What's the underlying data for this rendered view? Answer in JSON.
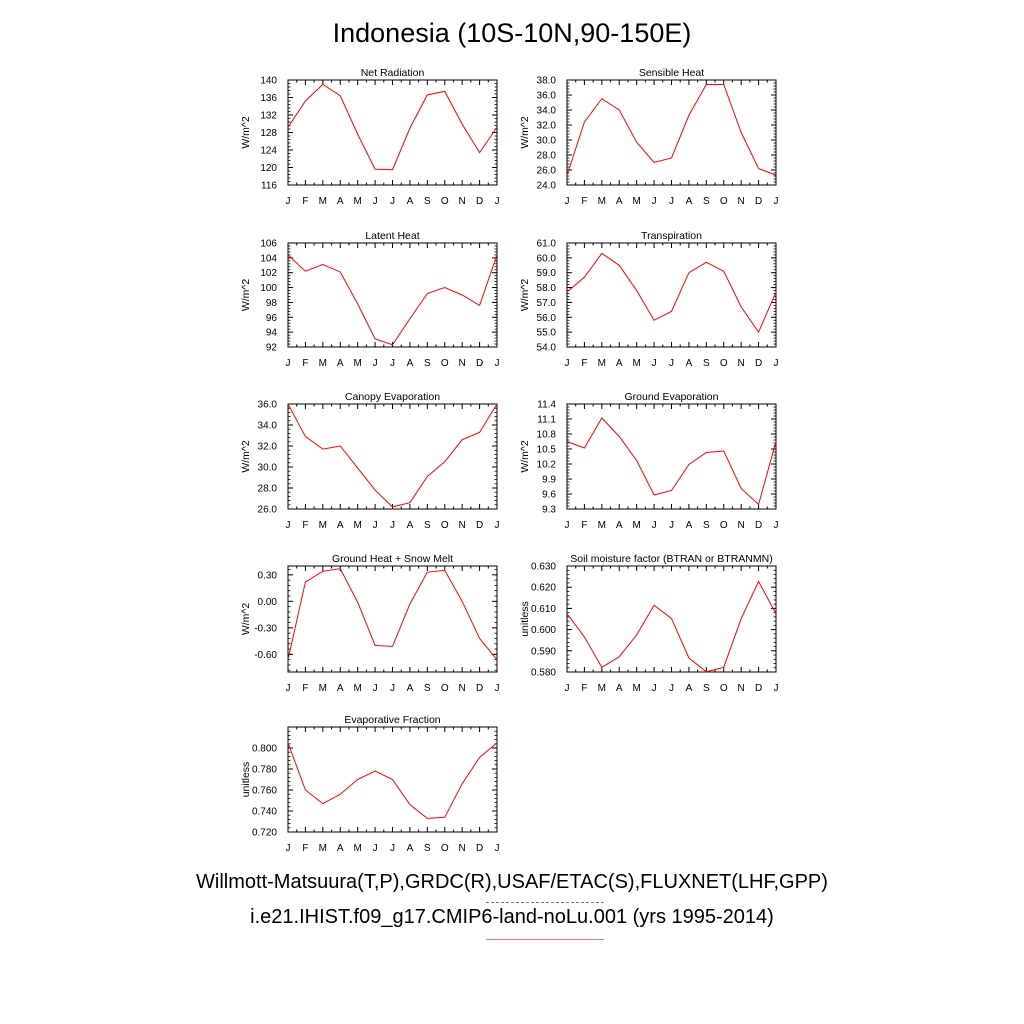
{
  "title": "Indonesia (10S-10N,90-150E)",
  "footer": {
    "line1": "Willmott-Matsuura(T,P),GRDC(R),USAF/ETAC(S),FLUXNET(LHF,GPP)",
    "line2": "i.e21.IHIST.f09_g17.CMIP6-land-noLu.001 (yrs 1995-2014)"
  },
  "colors": {
    "series": "#ff0000",
    "obs_legend": "#6a6af2",
    "model_legend": "#f07a7a"
  },
  "chart_data": [
    {
      "type": "line",
      "title": "Net Radiation",
      "ylabel": "W/m^2",
      "categories": [
        "J",
        "F",
        "M",
        "A",
        "M",
        "J",
        "J",
        "A",
        "S",
        "O",
        "N",
        "D",
        "J"
      ],
      "ylim": [
        116,
        140
      ],
      "yticks": [
        "116",
        "120",
        "124",
        "128",
        "132",
        "136",
        "140"
      ],
      "ytick_values": [
        116,
        120,
        124,
        128,
        132,
        136,
        140
      ],
      "series": [
        {
          "values": [
            129.2,
            135.2,
            139.0,
            136.4,
            127.6,
            119.6,
            119.5,
            129.0,
            136.6,
            137.4,
            129.9,
            123.4,
            129.2
          ]
        }
      ]
    },
    {
      "type": "line",
      "title": "Sensible Heat",
      "ylabel": "W/m^2",
      "categories": [
        "J",
        "F",
        "M",
        "A",
        "M",
        "J",
        "J",
        "A",
        "S",
        "O",
        "N",
        "D",
        "J"
      ],
      "ylim": [
        24.0,
        38.0
      ],
      "yticks": [
        "24.0",
        "26.0",
        "28.0",
        "30.0",
        "32.0",
        "34.0",
        "36.0",
        "38.0"
      ],
      "ytick_values": [
        24,
        26,
        28,
        30,
        32,
        34,
        36,
        38
      ],
      "series": [
        {
          "values": [
            25.3,
            32.4,
            35.5,
            34.0,
            29.7,
            27.0,
            27.6,
            33.3,
            37.4,
            37.4,
            31.0,
            26.2,
            25.3
          ]
        }
      ]
    },
    {
      "type": "line",
      "title": "Latent Heat",
      "ylabel": "W/m^2",
      "categories": [
        "J",
        "F",
        "M",
        "A",
        "M",
        "J",
        "J",
        "A",
        "S",
        "O",
        "N",
        "D",
        "J"
      ],
      "ylim": [
        92,
        106
      ],
      "yticks": [
        "92",
        "94",
        "96",
        "98",
        "100",
        "102",
        "104",
        "106"
      ],
      "ytick_values": [
        92,
        94,
        96,
        98,
        100,
        102,
        104,
        106
      ],
      "series": [
        {
          "values": [
            104.4,
            102.2,
            103.1,
            102.1,
            97.8,
            93.1,
            92.3,
            95.8,
            99.2,
            100.0,
            99.0,
            97.6,
            104.4
          ]
        }
      ]
    },
    {
      "type": "line",
      "title": "Transpiration",
      "ylabel": "W/m^2",
      "categories": [
        "J",
        "F",
        "M",
        "A",
        "M",
        "J",
        "J",
        "A",
        "S",
        "O",
        "N",
        "D",
        "J"
      ],
      "ylim": [
        54.0,
        61.0
      ],
      "yticks": [
        "54.0",
        "55.0",
        "56.0",
        "57.0",
        "58.0",
        "59.0",
        "60.0",
        "61.0"
      ],
      "ytick_values": [
        54,
        55,
        56,
        57,
        58,
        59,
        60,
        61
      ],
      "series": [
        {
          "values": [
            57.7,
            58.7,
            60.3,
            59.5,
            57.8,
            55.8,
            56.4,
            59.0,
            59.7,
            59.1,
            56.7,
            55.0,
            57.7
          ]
        }
      ]
    },
    {
      "type": "line",
      "title": "Canopy Evaporation",
      "ylabel": "W/m^2",
      "categories": [
        "J",
        "F",
        "M",
        "A",
        "M",
        "J",
        "J",
        "A",
        "S",
        "O",
        "N",
        "D",
        "J"
      ],
      "ylim": [
        26.0,
        36.0
      ],
      "yticks": [
        "26.0",
        "28.0",
        "30.0",
        "32.0",
        "34.0",
        "36.0"
      ],
      "ytick_values": [
        26,
        28,
        30,
        32,
        34,
        36
      ],
      "series": [
        {
          "values": [
            36.0,
            32.9,
            31.7,
            32.0,
            29.9,
            27.8,
            26.2,
            26.6,
            29.1,
            30.5,
            32.6,
            33.3,
            36.0
          ]
        }
      ]
    },
    {
      "type": "line",
      "title": "Ground Evaporation",
      "ylabel": "W/m^2",
      "categories": [
        "J",
        "F",
        "M",
        "A",
        "M",
        "J",
        "J",
        "A",
        "S",
        "O",
        "N",
        "D",
        "J"
      ],
      "ylim": [
        9.3,
        11.4
      ],
      "yticks": [
        "9.3",
        "9.6",
        "9.9",
        "10.2",
        "10.5",
        "10.8",
        "11.1",
        "11.4"
      ],
      "ytick_values": [
        9.3,
        9.6,
        9.9,
        10.2,
        10.5,
        10.8,
        11.1,
        11.4
      ],
      "series": [
        {
          "values": [
            10.65,
            10.52,
            11.12,
            10.75,
            10.27,
            9.58,
            9.67,
            10.19,
            10.43,
            10.46,
            9.71,
            9.39,
            10.65
          ]
        }
      ]
    },
    {
      "type": "line",
      "title": "Ground Heat + Snow Melt",
      "ylabel": "W/m^2",
      "categories": [
        "J",
        "F",
        "M",
        "A",
        "M",
        "J",
        "J",
        "A",
        "S",
        "O",
        "N",
        "D",
        "J"
      ],
      "ylim": [
        -0.8,
        0.4
      ],
      "yticks": [
        "-0.60",
        "-0.30",
        "0.00",
        "0.30"
      ],
      "ytick_values": [
        -0.6,
        -0.3,
        0.0,
        0.3
      ],
      "series": [
        {
          "values": [
            -0.66,
            0.22,
            0.34,
            0.37,
            -0.01,
            -0.5,
            -0.51,
            -0.03,
            0.33,
            0.35,
            0.0,
            -0.42,
            -0.66
          ]
        }
      ]
    },
    {
      "type": "line",
      "title": "Soil moisture factor (BTRAN or BTRANMN)",
      "ylabel": "unitless",
      "categories": [
        "J",
        "F",
        "M",
        "A",
        "M",
        "J",
        "J",
        "A",
        "S",
        "O",
        "N",
        "D",
        "J"
      ],
      "ylim": [
        0.58,
        0.63
      ],
      "yticks": [
        "0.580",
        "0.590",
        "0.600",
        "0.610",
        "0.620",
        "0.630"
      ],
      "ytick_values": [
        0.58,
        0.59,
        0.6,
        0.61,
        0.62,
        0.63
      ],
      "series": [
        {
          "values": [
            0.6075,
            0.5965,
            0.5822,
            0.5872,
            0.5975,
            0.6115,
            0.6052,
            0.5866,
            0.5801,
            0.5822,
            0.6052,
            0.6227,
            0.6075
          ]
        }
      ]
    },
    {
      "type": "line",
      "title": "Evaporative Fraction",
      "ylabel": "unitless",
      "categories": [
        "J",
        "F",
        "M",
        "A",
        "M",
        "J",
        "J",
        "A",
        "S",
        "O",
        "N",
        "D",
        "J"
      ],
      "ylim": [
        0.72,
        0.82
      ],
      "yticks": [
        "0.720",
        "0.740",
        "0.760",
        "0.780",
        "0.800"
      ],
      "ytick_values": [
        0.72,
        0.74,
        0.76,
        0.78,
        0.8
      ],
      "series": [
        {
          "values": [
            0.805,
            0.76,
            0.747,
            0.756,
            0.77,
            0.778,
            0.77,
            0.746,
            0.733,
            0.734,
            0.766,
            0.791,
            0.805
          ]
        }
      ]
    }
  ]
}
